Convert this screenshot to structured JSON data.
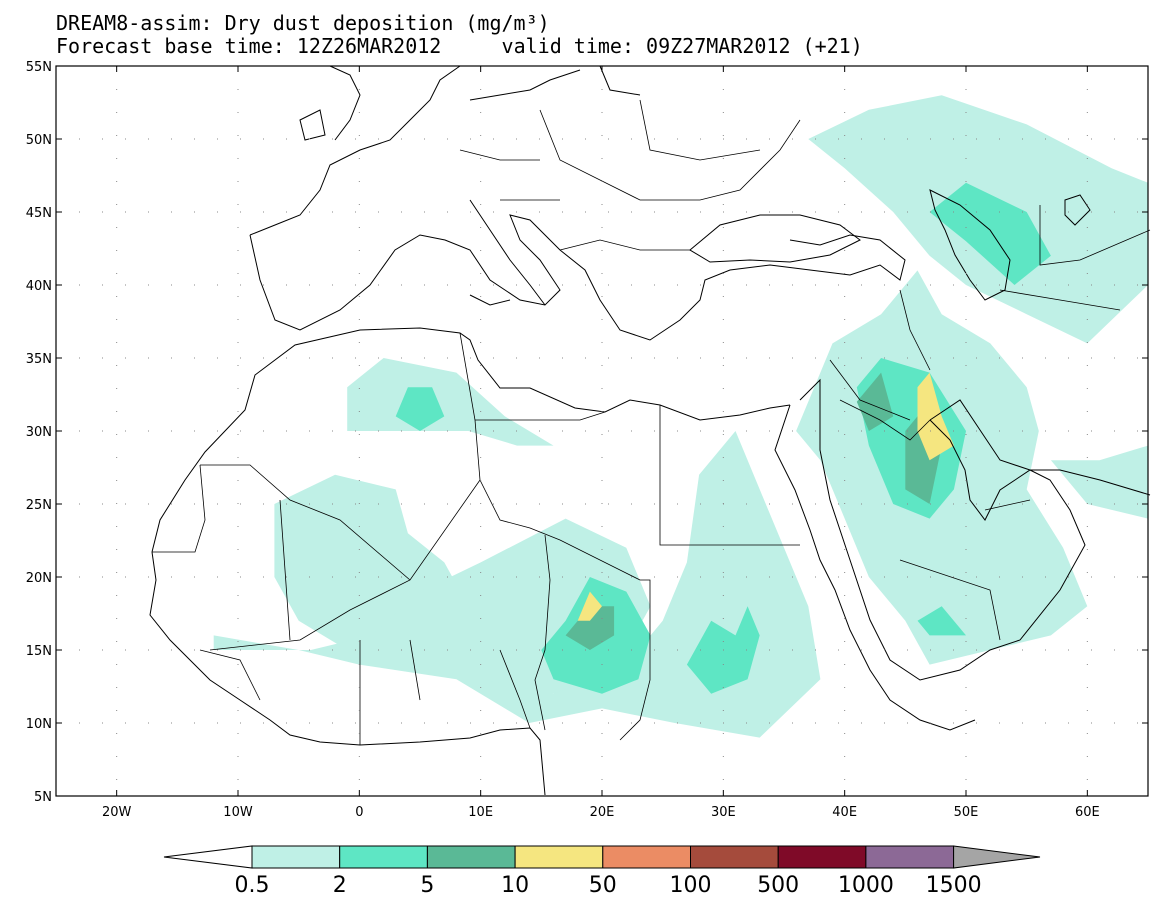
{
  "title": {
    "line1": "DREAM8-assim: Dry dust deposition (mg/m³)",
    "base_time": "Forecast base time: 12Z26MAR2012",
    "valid_time": "valid time: 09Z27MAR2012 (+21)"
  },
  "map": {
    "lon_range": [
      -25,
      65
    ],
    "lat_range": [
      5,
      55
    ],
    "lat_ticks": [
      {
        "value": 55,
        "label": "55N"
      },
      {
        "value": 50,
        "label": "50N"
      },
      {
        "value": 45,
        "label": "45N"
      },
      {
        "value": 40,
        "label": "40N"
      },
      {
        "value": 35,
        "label": "35N"
      },
      {
        "value": 30,
        "label": "30N"
      },
      {
        "value": 25,
        "label": "25N"
      },
      {
        "value": 20,
        "label": "20N"
      },
      {
        "value": 15,
        "label": "15N"
      },
      {
        "value": 10,
        "label": "10N"
      },
      {
        "value": 5,
        "label": "5N"
      }
    ],
    "lon_ticks": [
      {
        "value": -20,
        "label": "20W"
      },
      {
        "value": -10,
        "label": "10W"
      },
      {
        "value": 0,
        "label": "0"
      },
      {
        "value": 10,
        "label": "10E"
      },
      {
        "value": 20,
        "label": "20E"
      },
      {
        "value": 30,
        "label": "30E"
      },
      {
        "value": 40,
        "label": "40E"
      },
      {
        "value": 50,
        "label": "50E"
      },
      {
        "value": 60,
        "label": "60E"
      }
    ],
    "grid": "dotted"
  },
  "colorbar": {
    "labels": [
      "0.5",
      "2",
      "5",
      "10",
      "50",
      "100",
      "500",
      "1000",
      "1500"
    ],
    "colors": [
      "#ffffff",
      "#bff0e6",
      "#5ee6c4",
      "#5ab996",
      "#f5e680",
      "#eb8c64",
      "#a54b3c",
      "#7f0a28",
      "#8c6996",
      "#a5a5a5"
    ]
  },
  "dust_regions": [
    {
      "level": 1,
      "coords": [
        [
          -1,
          33
        ],
        [
          2,
          35
        ],
        [
          8,
          34
        ],
        [
          12,
          31
        ],
        [
          16,
          29
        ],
        [
          13,
          29
        ],
        [
          9,
          30
        ],
        [
          5,
          30
        ],
        [
          -1,
          30
        ]
      ]
    },
    {
      "level": 1,
      "coords": [
        [
          -7,
          25
        ],
        [
          -2,
          27
        ],
        [
          3,
          26
        ],
        [
          4,
          23
        ],
        [
          7,
          21
        ],
        [
          9,
          18
        ],
        [
          8,
          16
        ],
        [
          -1,
          15
        ],
        [
          -5,
          17
        ],
        [
          -7,
          20
        ]
      ]
    },
    {
      "level": 1,
      "coords": [
        [
          -12,
          16
        ],
        [
          -5,
          15
        ],
        [
          0,
          14
        ],
        [
          8,
          13
        ],
        [
          13,
          12
        ],
        [
          17,
          12
        ],
        [
          22,
          15
        ],
        [
          24,
          18
        ],
        [
          22,
          22
        ],
        [
          17,
          24
        ],
        [
          10,
          21
        ],
        [
          5,
          19
        ],
        [
          1,
          16
        ],
        [
          -4,
          15
        ],
        [
          -12,
          15
        ]
      ]
    },
    {
      "level": 1,
      "coords": [
        [
          8,
          13
        ],
        [
          14,
          10
        ],
        [
          20,
          11
        ],
        [
          26,
          10
        ],
        [
          33,
          9
        ],
        [
          38,
          13
        ],
        [
          37,
          18
        ],
        [
          35,
          22
        ],
        [
          33,
          26
        ],
        [
          31,
          30
        ],
        [
          28,
          27
        ],
        [
          27,
          21
        ],
        [
          25,
          17
        ],
        [
          22,
          14
        ],
        [
          16,
          12
        ],
        [
          10,
          13
        ]
      ]
    },
    {
      "level": 1,
      "coords": [
        [
          36,
          30
        ],
        [
          39,
          36
        ],
        [
          43,
          38
        ],
        [
          46,
          41
        ],
        [
          48,
          38
        ],
        [
          52,
          36
        ],
        [
          55,
          33
        ],
        [
          56,
          30
        ],
        [
          55,
          26
        ],
        [
          58,
          22
        ],
        [
          60,
          18
        ],
        [
          57,
          16
        ],
        [
          52,
          15
        ],
        [
          47,
          14
        ],
        [
          45,
          17
        ],
        [
          42,
          20
        ],
        [
          40,
          24
        ],
        [
          38,
          28
        ]
      ]
    },
    {
      "level": 1,
      "coords": [
        [
          37,
          50
        ],
        [
          42,
          52
        ],
        [
          48,
          53
        ],
        [
          55,
          51
        ],
        [
          62,
          48
        ],
        [
          65,
          47
        ],
        [
          65,
          40
        ],
        [
          60,
          36
        ],
        [
          55,
          38
        ],
        [
          50,
          40
        ],
        [
          47,
          42
        ],
        [
          44,
          45
        ],
        [
          40,
          48
        ]
      ]
    },
    {
      "level": 1,
      "coords": [
        [
          57,
          28
        ],
        [
          61,
          28
        ],
        [
          65,
          29
        ],
        [
          65,
          24
        ],
        [
          60,
          25
        ]
      ]
    },
    {
      "level": 2,
      "coords": [
        [
          17,
          17
        ],
        [
          19,
          20
        ],
        [
          22,
          19
        ],
        [
          24,
          16
        ],
        [
          23,
          13
        ],
        [
          20,
          12
        ],
        [
          16,
          13
        ],
        [
          15,
          15
        ]
      ]
    },
    {
      "level": 2,
      "coords": [
        [
          27,
          14
        ],
        [
          29,
          17
        ],
        [
          31,
          16
        ],
        [
          32,
          18
        ],
        [
          33,
          16
        ],
        [
          32,
          13
        ],
        [
          29,
          12
        ]
      ]
    },
    {
      "level": 2,
      "coords": [
        [
          3,
          31
        ],
        [
          4,
          33
        ],
        [
          6,
          33
        ],
        [
          7,
          31
        ],
        [
          5,
          30
        ]
      ]
    },
    {
      "level": 2,
      "coords": [
        [
          41,
          33
        ],
        [
          43,
          35
        ],
        [
          47,
          34
        ],
        [
          50,
          30
        ],
        [
          49,
          26
        ],
        [
          47,
          24
        ],
        [
          44,
          25
        ],
        [
          42,
          29
        ]
      ]
    },
    {
      "level": 2,
      "coords": [
        [
          47,
          45
        ],
        [
          50,
          47
        ],
        [
          55,
          45
        ],
        [
          57,
          42
        ],
        [
          54,
          40
        ],
        [
          50,
          43
        ]
      ]
    },
    {
      "level": 2,
      "coords": [
        [
          46,
          17
        ],
        [
          48,
          18
        ],
        [
          50,
          16
        ],
        [
          47,
          16
        ]
      ]
    },
    {
      "level": 3,
      "coords": [
        [
          17,
          16
        ],
        [
          19,
          18
        ],
        [
          21,
          18
        ],
        [
          21,
          16
        ],
        [
          19,
          15
        ]
      ]
    },
    {
      "level": 3,
      "coords": [
        [
          45,
          30
        ],
        [
          47,
          32
        ],
        [
          48,
          29
        ],
        [
          47,
          25
        ],
        [
          45,
          26
        ]
      ]
    },
    {
      "level": 3,
      "coords": [
        [
          41,
          32
        ],
        [
          43,
          34
        ],
        [
          44,
          31
        ],
        [
          42,
          30
        ]
      ]
    },
    {
      "level": 4,
      "coords": [
        [
          18,
          17
        ],
        [
          19,
          19
        ],
        [
          20,
          18
        ],
        [
          19,
          17
        ]
      ]
    },
    {
      "level": 4,
      "coords": [
        [
          46,
          33
        ],
        [
          47,
          34
        ],
        [
          48,
          31
        ],
        [
          49,
          29
        ],
        [
          47,
          28
        ],
        [
          46,
          30
        ]
      ]
    }
  ]
}
